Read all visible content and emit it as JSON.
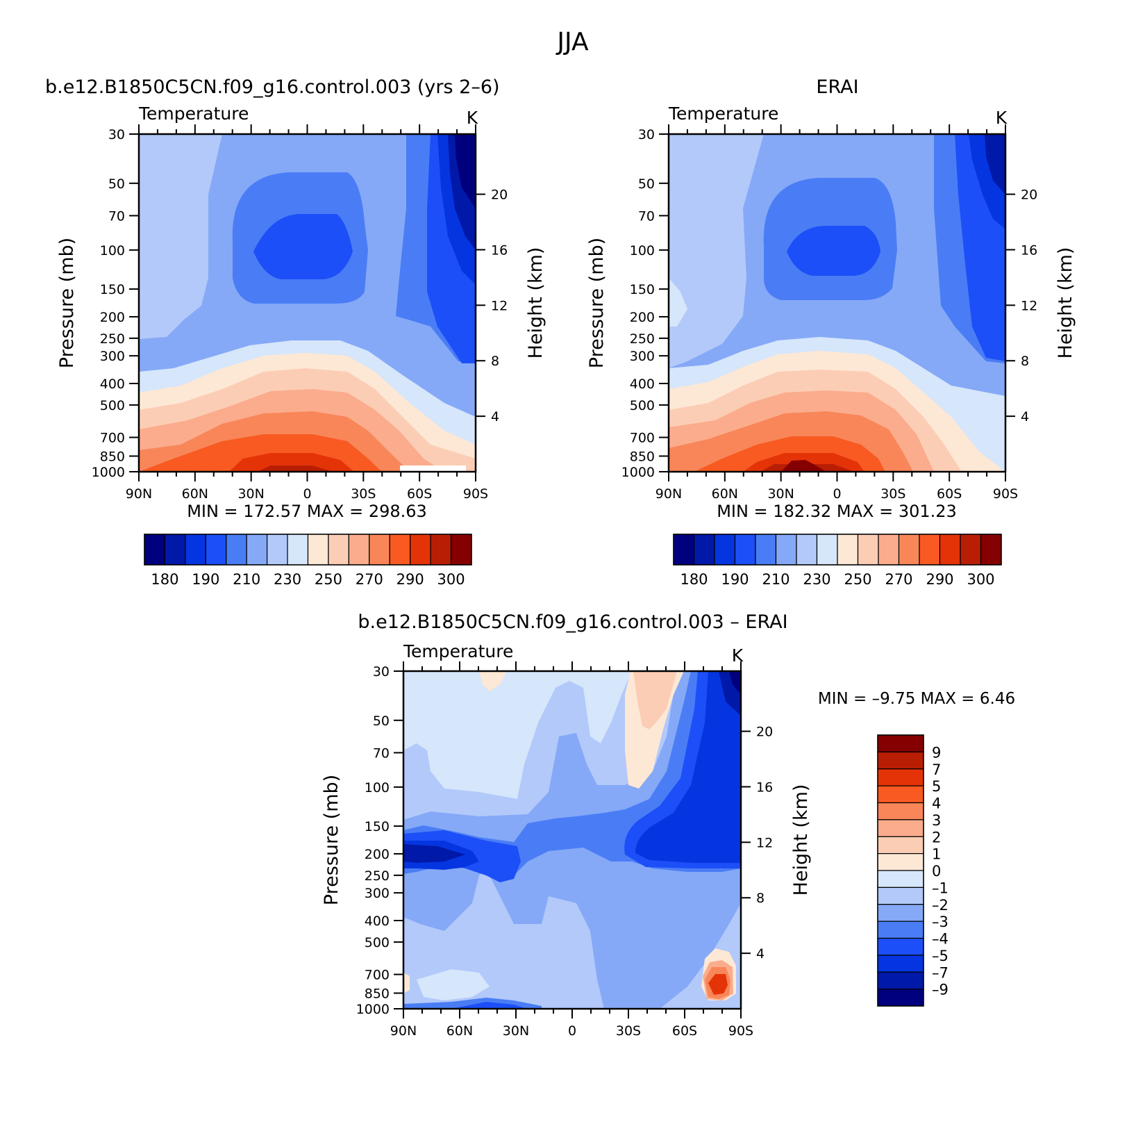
{
  "figure": {
    "title": "JJA"
  },
  "scale_colors": [
    "#00007f",
    "#0019a8",
    "#0535e0",
    "#1c4ff7",
    "#4a7df5",
    "#85a9f7",
    "#b2c9fa",
    "#d6e6fb",
    "#fde8d5",
    "#fccdb5",
    "#fbac8c",
    "#f88659",
    "#f85a22",
    "#e53308",
    "#b81e03",
    "#850000"
  ],
  "chart_data": [
    {
      "type": "heatmap",
      "name": "model-panel",
      "left_title": "b.e12.B1850C5CN.f09_g16.control.003 (yrs 2–6)",
      "field_label": "Temperature",
      "units": "K",
      "ylabel": "Pressure (mb)",
      "ylabel_right": "Height (km)",
      "x_ticks": [
        "90N",
        "60N",
        "30N",
        "0",
        "30S",
        "60S",
        "90S"
      ],
      "y_ticks": [
        "30",
        "50",
        "70",
        "100",
        "150",
        "200",
        "250",
        "300",
        "400",
        "500",
        "700",
        "850",
        "1000"
      ],
      "y_ticks_right": [
        "4",
        "8",
        "12",
        "16",
        "20"
      ],
      "stats": "MIN = 172.57   MAX = 298.63",
      "colorbar_labels": [
        "180",
        "190",
        "210",
        "230",
        "250",
        "270",
        "290",
        "300"
      ],
      "ylim": [
        1000,
        30
      ],
      "y_scale": "log"
    },
    {
      "type": "heatmap",
      "name": "obs-panel",
      "right_title": "ERAI",
      "field_label": "Temperature",
      "units": "K",
      "ylabel": "Pressure (mb)",
      "ylabel_right": "Height (km)",
      "x_ticks": [
        "90N",
        "60N",
        "30N",
        "0",
        "30S",
        "60S",
        "90S"
      ],
      "y_ticks": [
        "30",
        "50",
        "70",
        "100",
        "150",
        "200",
        "250",
        "300",
        "400",
        "500",
        "700",
        "850",
        "1000"
      ],
      "y_ticks_right": [
        "4",
        "8",
        "12",
        "16",
        "20"
      ],
      "stats": "MIN = 182.32   MAX = 301.23",
      "colorbar_labels": [
        "180",
        "190",
        "210",
        "230",
        "250",
        "270",
        "290",
        "300"
      ],
      "ylim": [
        1000,
        30
      ],
      "y_scale": "log"
    },
    {
      "type": "heatmap",
      "name": "diff-panel",
      "center_title": "b.e12.B1850C5CN.f09_g16.control.003 – ERAI",
      "field_label": "Temperature",
      "units": "K",
      "ylabel": "Pressure (mb)",
      "ylabel_right": "Height (km)",
      "x_ticks": [
        "90N",
        "60N",
        "30N",
        "0",
        "30S",
        "60S",
        "90S"
      ],
      "y_ticks": [
        "30",
        "50",
        "70",
        "100",
        "150",
        "200",
        "250",
        "300",
        "400",
        "500",
        "700",
        "850",
        "1000"
      ],
      "y_ticks_right": [
        "4",
        "8",
        "12",
        "16",
        "20"
      ],
      "stats": "MIN =    –9.75   MAX =     6.46",
      "colorbar_labels": [
        "9",
        "7",
        "5",
        "4",
        "3",
        "2",
        "1",
        "0",
        "–1",
        "–2",
        "–3",
        "–4",
        "–5",
        "–7",
        "–9"
      ],
      "ylim": [
        1000,
        30
      ],
      "y_scale": "log"
    }
  ]
}
